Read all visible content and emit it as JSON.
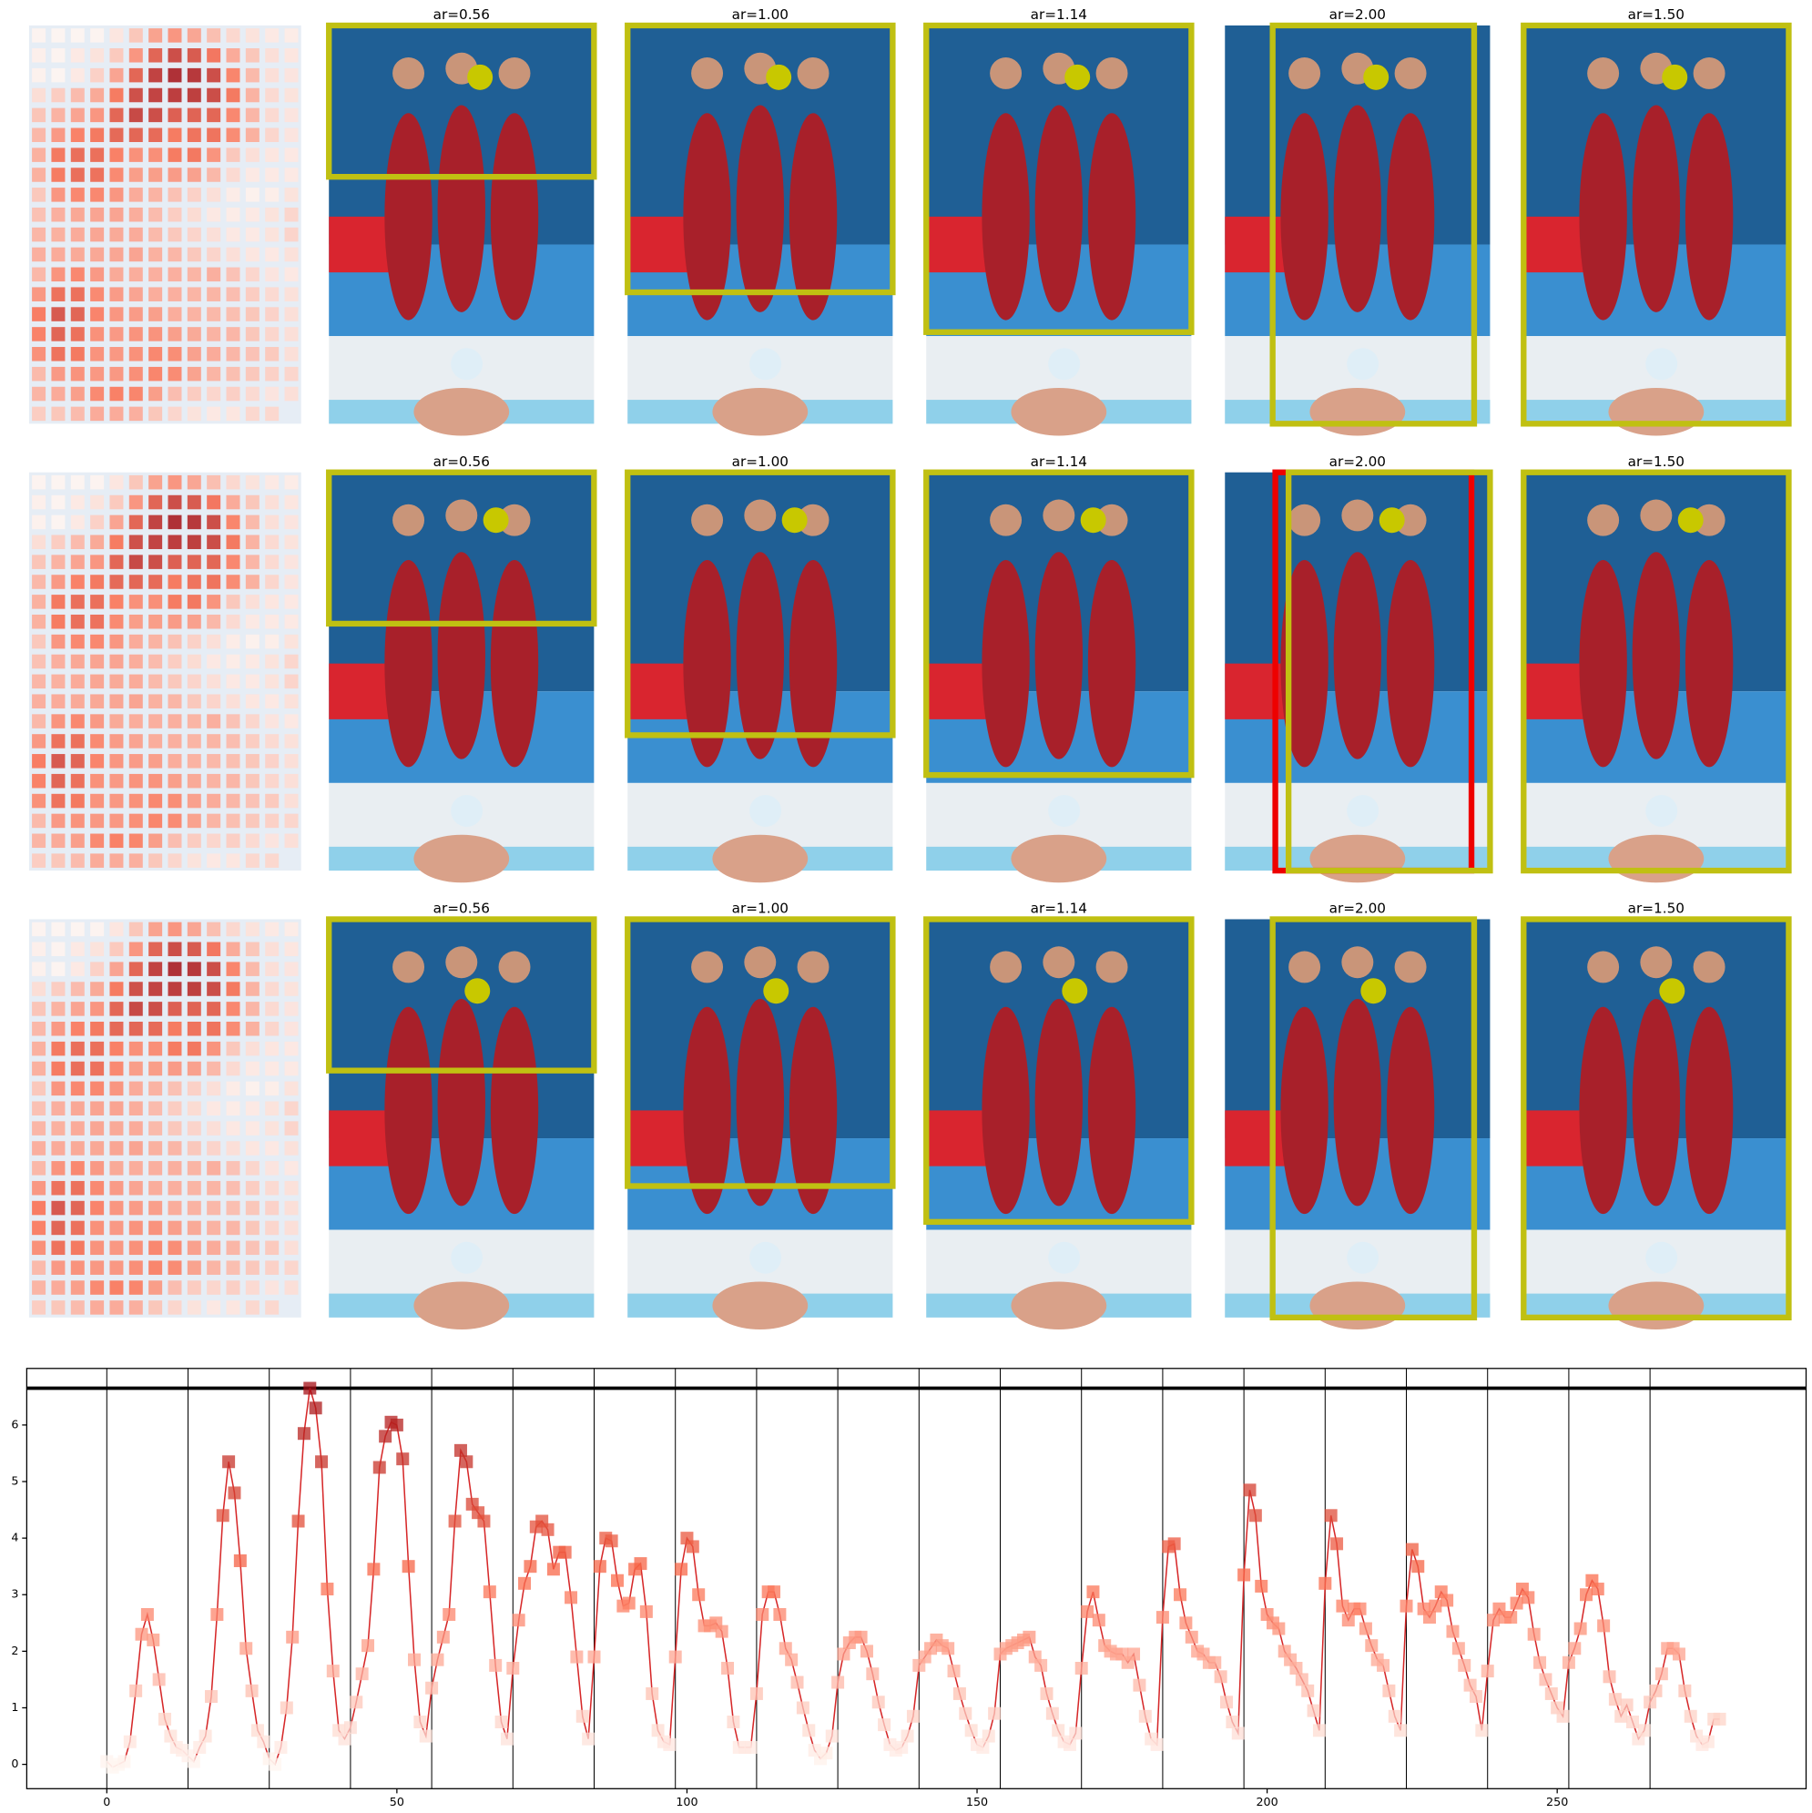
{
  "figure": {
    "rows": [
      [
        "ar=0.56",
        "ar=1.00",
        "ar=1.14",
        "ar=2.00",
        "ar=1.50"
      ],
      [
        "ar=0.56",
        "ar=1.00",
        "ar=1.14",
        "ar=2.00",
        "ar=1.50"
      ],
      [
        "ar=0.56",
        "ar=1.00",
        "ar=1.14",
        "ar=2.00",
        "ar=1.50"
      ]
    ]
  },
  "chart_data": {
    "type": "line",
    "values": [
      0.05,
      -0.05,
      0,
      0.05,
      0.4,
      1.3,
      2.3,
      2.65,
      2.2,
      1.5,
      0.8,
      0.5,
      0.3,
      0.25,
      0.15,
      0.05,
      0.3,
      0.5,
      1.2,
      2.65,
      4.4,
      5.35,
      4.8,
      3.6,
      2.05,
      1.3,
      0.6,
      0.4,
      0.1,
      0,
      0.3,
      1.0,
      2.25,
      4.3,
      5.85,
      6.65,
      6.3,
      5.35,
      3.1,
      1.65,
      0.6,
      0.45,
      0.65,
      1.1,
      1.6,
      2.1,
      3.45,
      5.25,
      5.8,
      6.05,
      6.0,
      5.4,
      3.5,
      1.85,
      0.75,
      0.5,
      1.35,
      1.85,
      2.25,
      2.65,
      4.3,
      5.55,
      5.35,
      4.6,
      4.45,
      4.3,
      3.05,
      1.75,
      0.75,
      0.45,
      1.7,
      2.55,
      3.2,
      3.5,
      4.2,
      4.3,
      4.15,
      3.45,
      3.75,
      3.75,
      2.95,
      1.9,
      0.85,
      0.45,
      1.9,
      3.5,
      4.0,
      3.95,
      3.25,
      2.8,
      2.85,
      3.45,
      3.55,
      2.7,
      1.25,
      0.6,
      0.4,
      0.35,
      1.9,
      3.45,
      4.0,
      3.85,
      3.0,
      2.45,
      2.45,
      2.5,
      2.35,
      1.7,
      0.75,
      0.3,
      0.3,
      0.3,
      1.25,
      2.65,
      3.05,
      3.05,
      2.65,
      2.05,
      1.85,
      1.45,
      1.0,
      0.6,
      0.25,
      0.1,
      0.2,
      0.5,
      1.45,
      1.95,
      2.15,
      2.25,
      2.25,
      2.0,
      1.6,
      1.1,
      0.7,
      0.35,
      0.25,
      0.3,
      0.5,
      0.85,
      1.75,
      1.9,
      2.05,
      2.2,
      2.1,
      2.05,
      1.65,
      1.25,
      0.9,
      0.6,
      0.35,
      0.3,
      0.5,
      0.9,
      1.95,
      2.05,
      2.1,
      2.15,
      2.2,
      2.25,
      1.9,
      1.75,
      1.25,
      0.9,
      0.6,
      0.4,
      0.35,
      0.55,
      1.7,
      2.7,
      3.05,
      2.55,
      2.1,
      2.0,
      1.95,
      1.95,
      1.8,
      1.95,
      1.4,
      0.85,
      0.45,
      0.35,
      2.6,
      3.85,
      3.9,
      3.0,
      2.5,
      2.25,
      2.0,
      1.95,
      1.8,
      1.8,
      1.55,
      1.1,
      0.75,
      0.55,
      3.35,
      4.85,
      4.4,
      3.15,
      2.65,
      2.5,
      2.4,
      2.0,
      1.85,
      1.7,
      1.5,
      1.3,
      0.95,
      0.6,
      3.2,
      4.4,
      3.9,
      2.8,
      2.55,
      2.75,
      2.75,
      2.4,
      2.1,
      1.85,
      1.75,
      1.3,
      0.85,
      0.6,
      2.8,
      3.8,
      3.5,
      2.75,
      2.6,
      2.8,
      3.05,
      2.9,
      2.35,
      2.05,
      1.75,
      1.4,
      1.2,
      0.6,
      1.65,
      2.55,
      2.75,
      2.6,
      2.6,
      2.85,
      3.1,
      2.95,
      2.3,
      1.8,
      1.5,
      1.25,
      1.0,
      0.85,
      1.8,
      2.05,
      2.4,
      3.0,
      3.25,
      3.1,
      2.45,
      1.55,
      1.15,
      0.85,
      1.05,
      0.75,
      0.45,
      0.6,
      1.1,
      1.3,
      1.6,
      2.05,
      2.05,
      1.95,
      1.3,
      0.85,
      0.5,
      0.35,
      0.4,
      0.8,
      0.8
    ],
    "line_color": "#d62728",
    "color_scale": [
      "#fff5f0",
      "#fb6a4a",
      "#a50f15"
    ],
    "hline": 6.65,
    "vlines": [
      0,
      14,
      28,
      42,
      56,
      70,
      84,
      98,
      112,
      126,
      140,
      154,
      168,
      182,
      196,
      210,
      224,
      238,
      252,
      266
    ],
    "xlim": [
      -13.8,
      292.9
    ],
    "ylim": [
      -0.43,
      7.0
    ],
    "xticks": [
      0,
      50,
      100,
      150,
      200,
      250
    ],
    "yticks": [
      0,
      1,
      2,
      3,
      4,
      5,
      6
    ],
    "heatmap_columns": 14
  }
}
